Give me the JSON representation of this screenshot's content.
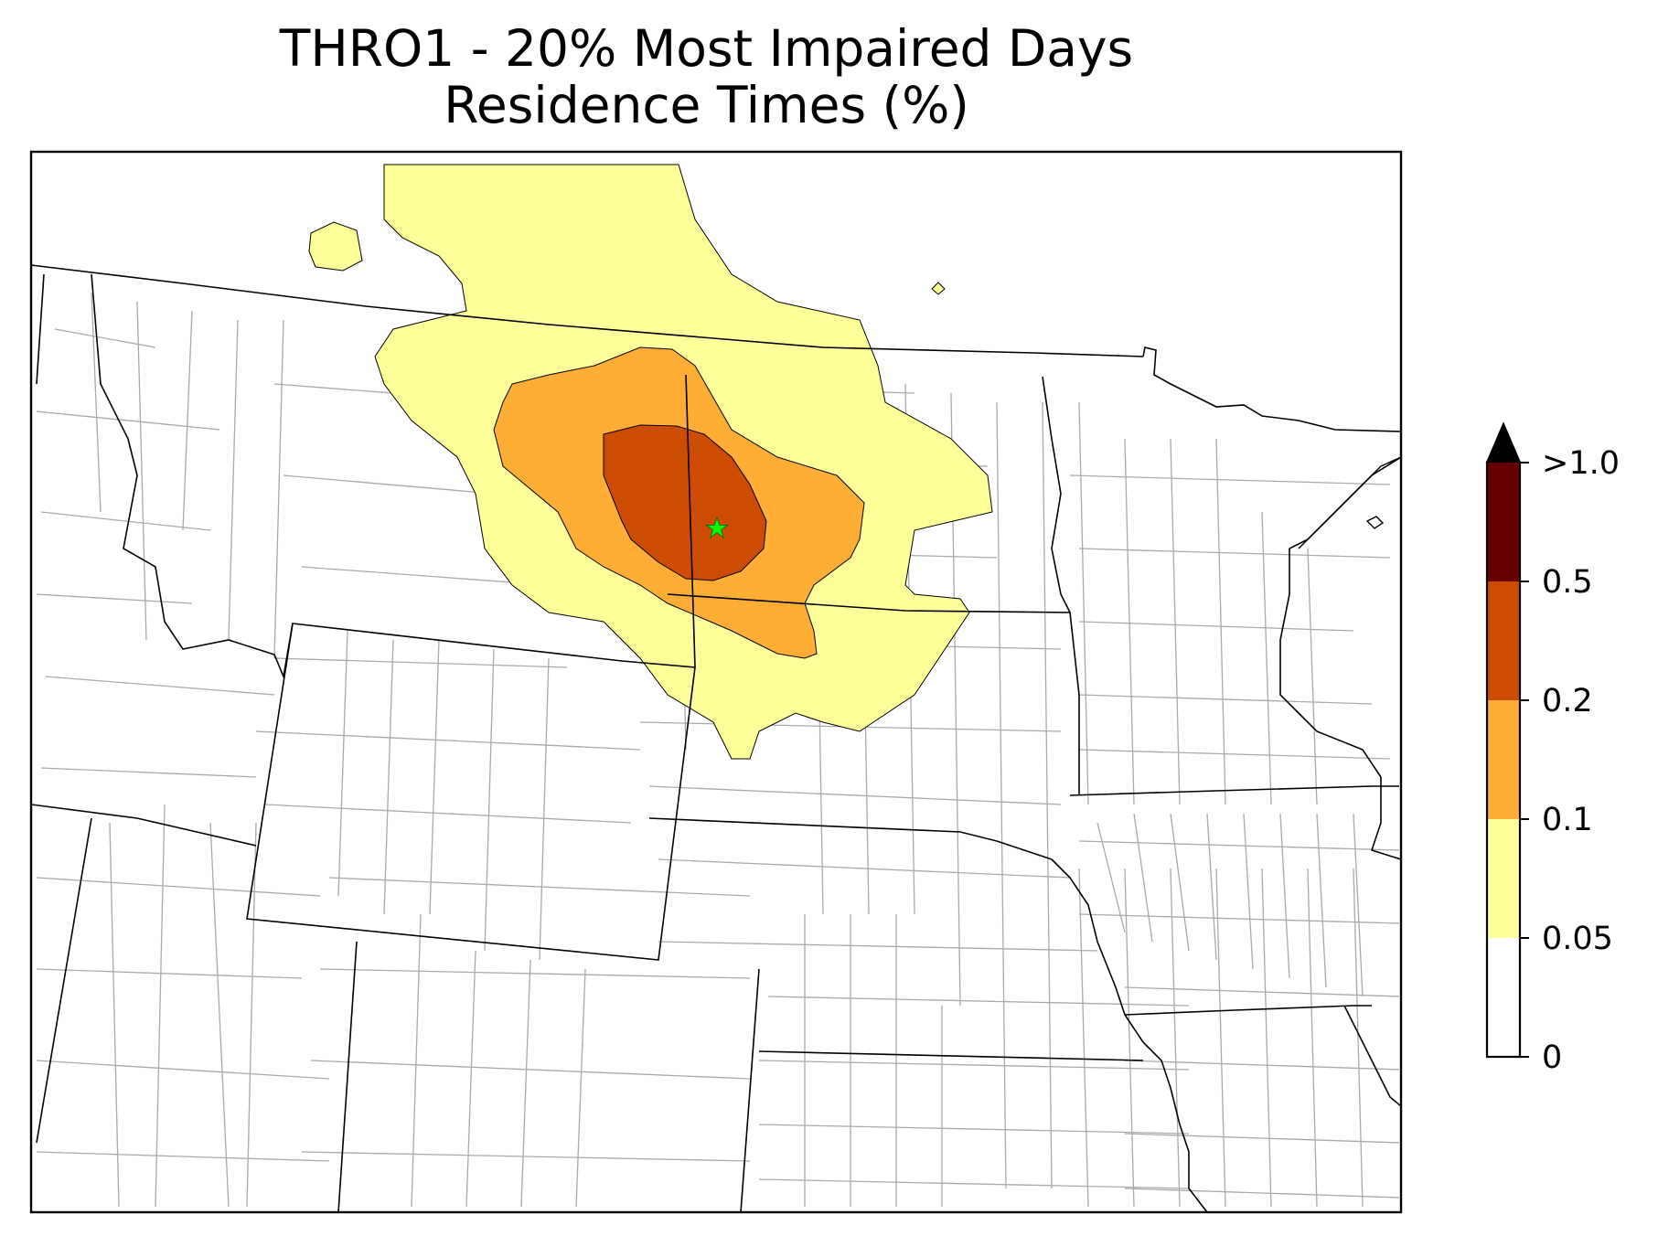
{
  "title": {
    "line1": "THRO1 - 20% Most Impaired Days",
    "line2": "Residence Times (%)"
  },
  "site_marker": {
    "icon": "star-icon",
    "color": "#00ff00"
  },
  "colorbar": {
    "extend": "max",
    "extend_color": "#000000",
    "bins": [
      {
        "from": "0",
        "to": "0.05",
        "color": "#ffffff"
      },
      {
        "from": "0.05",
        "to": "0.1",
        "color": "#ffff99"
      },
      {
        "from": "0.1",
        "to": "0.2",
        "color": "#feae34"
      },
      {
        "from": "0.2",
        "to": "0.5",
        "color": "#cc4c02"
      },
      {
        "from": "0.5",
        "to": ">1.0",
        "color": "#660000"
      }
    ],
    "tick_labels": [
      "0",
      "0.05",
      "0.1",
      "0.2",
      "0.5",
      ">1.0"
    ]
  }
}
